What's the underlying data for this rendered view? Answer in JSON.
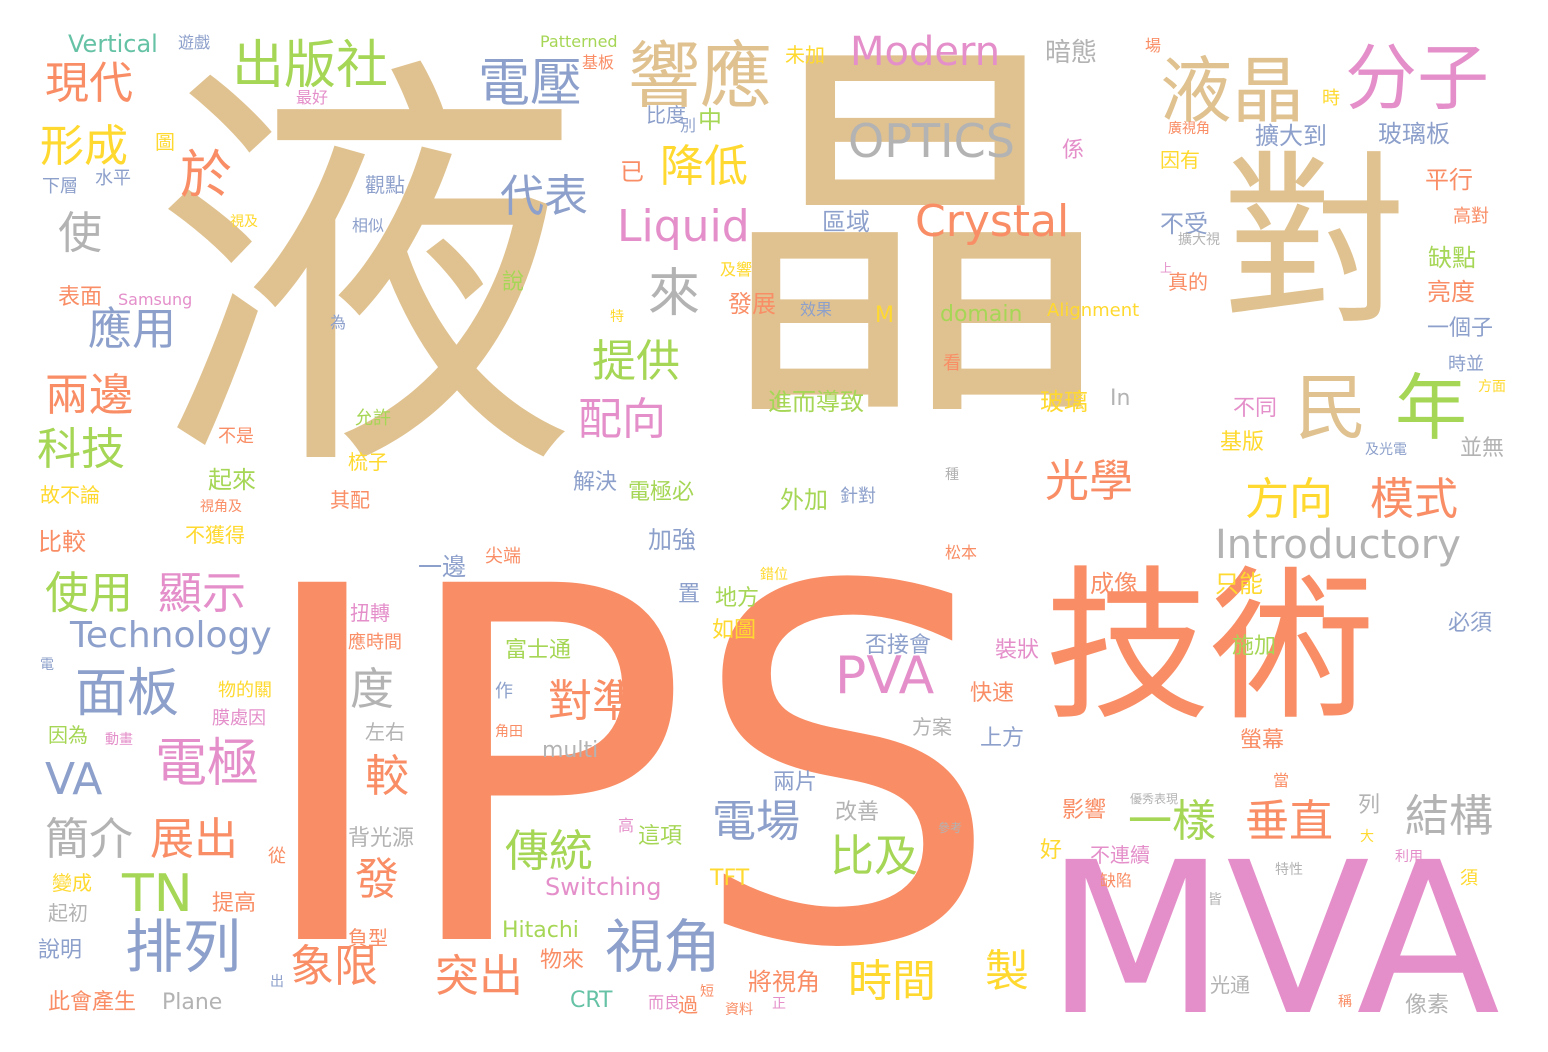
{
  "palette": {
    "tan": "#e0c290",
    "orange": "#f98e66",
    "pink": "#e48fca",
    "green": "#a6d655",
    "blue": "#8da0cb",
    "gray": "#b3b3b3",
    "yellow": "#ffd92f",
    "teal": "#66c2a5"
  },
  "words": [
    "液",
    "晶",
    "IPS",
    "對",
    "技術",
    "MVA",
    "液晶",
    "分子",
    "民",
    "年",
    "響應",
    "出版社",
    "電壓",
    "OPTICS",
    "Crystal",
    "Liquid",
    "Modern",
    "現代",
    "形成",
    "於",
    "降低",
    "代表",
    "使",
    "來",
    "應用",
    "兩邊",
    "科技",
    "提供",
    "配向",
    "光學",
    "方向",
    "模式",
    "Introductory",
    "使用",
    "顯示",
    "Technology",
    "面板",
    "VA",
    "電極",
    "排列",
    "視角",
    "PVA",
    "對準",
    "度",
    "較",
    "簡介",
    "展出",
    "TN",
    "發",
    "象限",
    "突出",
    "時間",
    "製",
    "傳統",
    "電場",
    "比及",
    "一樣",
    "垂直",
    "結構",
    "Vertical",
    "遊戲",
    "Patterned",
    "基板",
    "未加",
    "暗態",
    "場",
    "最好",
    "比度",
    "別",
    "中",
    "擴大到",
    "玻璃板",
    "時",
    "廣視角",
    "係",
    "因有",
    "平行",
    "圖",
    "下層",
    "水平",
    "觀點",
    "已",
    "不受",
    "高對",
    "區域",
    "缺點",
    "擴大視",
    "相似",
    "視及",
    "真的",
    "亮度",
    "表面",
    "Samsung",
    "說",
    "及響",
    "發展",
    "效果",
    "M",
    "domain",
    "Alignment",
    "一個子",
    "為",
    "特",
    "時並",
    "方面",
    "看",
    "進而導致",
    "玻璃",
    "In",
    "不同",
    "允許",
    "基版",
    "並無",
    "不是",
    "梳子",
    "及光電",
    "起來",
    "解決",
    "電極必",
    "種",
    "故不論",
    "視角及",
    "其配",
    "外加",
    "針對",
    "比較",
    "不獲得",
    "加強",
    "尖端",
    "一邊",
    "松本",
    "錯位",
    "成像",
    "只能",
    "置",
    "地方",
    "如圖",
    "扭轉",
    "應時間",
    "富士通",
    "否接會",
    "裝狀",
    "施加",
    "必須",
    "電",
    "作",
    "快速",
    "物的關",
    "膜處因",
    "因為",
    "動畫",
    "左右",
    "角田",
    "方案",
    "上方",
    "螢幕",
    "multi",
    "兩片",
    "當",
    "改善",
    "影響",
    "優秀表現",
    "列",
    "背光源",
    "高",
    "這項",
    "參考",
    "大",
    "好",
    "不連續",
    "從",
    "利用",
    "特性",
    "缺陷",
    "變成",
    "Switching",
    "TFT",
    "須",
    "起初",
    "提高",
    "Hitachi",
    "皆",
    "說明",
    "負型",
    "出",
    "物來",
    "將視角",
    "光通",
    "稱",
    "此會產生",
    "Plane",
    "CRT",
    "而良",
    "過",
    "短",
    "資料",
    "正",
    "像素",
    "上"
  ]
}
